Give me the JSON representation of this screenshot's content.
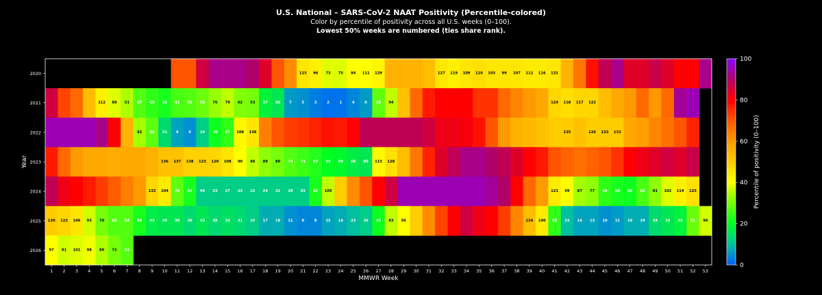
{
  "title": "U.S. National – SARS-CoV-2 NAAT Positivity (Percentile-colored)",
  "subtitle": "Color by percentile of positivity across all U.S. weeks (0–100).",
  "subtitle2": "Lowest 50% weeks are numbered (ties share rank).",
  "chart_data": {
    "type": "heatmap",
    "xlabel": "MMWR Week",
    "ylabel": "Year",
    "colorbar_label": "Percentile of positivity (0–100)",
    "colorbar_ticks": [
      0,
      20,
      40,
      60,
      80,
      100
    ],
    "colorscale": "hsv-like: 0=blue, 20=green, 40=yellow, 60=orange, 80=red, 100=violet",
    "weeks": [
      1,
      2,
      3,
      4,
      5,
      6,
      7,
      8,
      9,
      10,
      11,
      12,
      13,
      14,
      15,
      16,
      17,
      18,
      19,
      20,
      21,
      22,
      23,
      24,
      25,
      26,
      27,
      28,
      29,
      30,
      31,
      32,
      33,
      34,
      35,
      36,
      37,
      38,
      39,
      40,
      41,
      42,
      43,
      44,
      45,
      46,
      47,
      48,
      49,
      50,
      51,
      52,
      53
    ],
    "years": [
      "2020",
      "2021",
      "2022",
      "2023",
      "2024",
      "2025",
      "2026"
    ],
    "rows": [
      {
        "year": "2020",
        "percentile": [
          null,
          null,
          null,
          null,
          null,
          null,
          null,
          null,
          null,
          null,
          70,
          70,
          86,
          92,
          92,
          92,
          90,
          84,
          70,
          62,
          45,
          43,
          38,
          38,
          40,
          40,
          42,
          55,
          55,
          55,
          53,
          45,
          43,
          45,
          46,
          45,
          45,
          45,
          44,
          44,
          45,
          55,
          65,
          78,
          88,
          92,
          84,
          84,
          87,
          84,
          80,
          80,
          92
        ],
        "rank": [
          null,
          null,
          null,
          null,
          null,
          null,
          null,
          null,
          null,
          null,
          null,
          null,
          null,
          null,
          null,
          null,
          null,
          null,
          null,
          null,
          115,
          96,
          73,
          75,
          84,
          111,
          129,
          null,
          null,
          null,
          null,
          127,
          119,
          109,
          110,
          103,
          99,
          107,
          112,
          116,
          131,
          null,
          null,
          null,
          null,
          null,
          null,
          null,
          null,
          null,
          null,
          null,
          null
        ]
      },
      {
        "year": "2021",
        "percentile": [
          86,
          72,
          67,
          53,
          43,
          38,
          35,
          27,
          24,
          22,
          26,
          27,
          29,
          33,
          36,
          31,
          30,
          18,
          16,
          6,
          5,
          3,
          2,
          2,
          4,
          6,
          28,
          36,
          52,
          67,
          77,
          80,
          80,
          80,
          74,
          74,
          67,
          63,
          60,
          57,
          48,
          46,
          48,
          48,
          53,
          57,
          60,
          67,
          60,
          67,
          93,
          95,
          null
        ],
        "rank": [
          null,
          null,
          null,
          null,
          112,
          88,
          51,
          47,
          46,
          34,
          41,
          52,
          69,
          76,
          79,
          62,
          53,
          37,
          20,
          7,
          5,
          3,
          2,
          1,
          4,
          6,
          48,
          94,
          null,
          null,
          null,
          null,
          null,
          null,
          null,
          null,
          null,
          null,
          null,
          null,
          124,
          118,
          117,
          122,
          null,
          null,
          null,
          null,
          null,
          null,
          null,
          null,
          null
        ]
      },
      {
        "year": "2022",
        "percentile": [
          95,
          95,
          95,
          95,
          92,
          80,
          55,
          34,
          28,
          14,
          7,
          5,
          12,
          21,
          24,
          41,
          45,
          64,
          70,
          73,
          74,
          76,
          78,
          77,
          80,
          88,
          88,
          88,
          88,
          88,
          86,
          82,
          82,
          81,
          78,
          70,
          60,
          55,
          54,
          52,
          50,
          50,
          52,
          50,
          50,
          50,
          57,
          59,
          63,
          66,
          70,
          76,
          null
        ],
        "rank": [
          null,
          null,
          null,
          null,
          null,
          null,
          null,
          92,
          46,
          21,
          9,
          6,
          19,
          30,
          67,
          108,
          138,
          null,
          null,
          null,
          null,
          null,
          null,
          null,
          null,
          null,
          null,
          null,
          null,
          null,
          null,
          null,
          null,
          null,
          null,
          null,
          null,
          null,
          null,
          null,
          null,
          135,
          null,
          126,
          133,
          132,
          null,
          null,
          null,
          null,
          null,
          null,
          null
        ]
      },
      {
        "year": "2023",
        "percentile": [
          77,
          67,
          60,
          57,
          57,
          56,
          57,
          57,
          55,
          52,
          52,
          49,
          49,
          48,
          45,
          40,
          36,
          32,
          30,
          27,
          25,
          23,
          20,
          19,
          17,
          16,
          41,
          46,
          53,
          65,
          76,
          84,
          88,
          92,
          92,
          90,
          88,
          84,
          80,
          77,
          70,
          68,
          66,
          68,
          70,
          74,
          80,
          82,
          84,
          86,
          84,
          87,
          null
        ],
        "rank": [
          null,
          null,
          null,
          null,
          null,
          null,
          null,
          null,
          null,
          136,
          137,
          138,
          123,
          120,
          108,
          90,
          86,
          89,
          80,
          74,
          71,
          57,
          52,
          60,
          66,
          85,
          113,
          128,
          null,
          null,
          null,
          null,
          null,
          null,
          null,
          null,
          null,
          null,
          null,
          null,
          null,
          null,
          null,
          null,
          null,
          null,
          null,
          null,
          null,
          null,
          null,
          null,
          null
        ]
      },
      {
        "year": "2024",
        "percentile": [
          88,
          82,
          80,
          77,
          73,
          69,
          64,
          60,
          48,
          44,
          28,
          22,
          12,
          12,
          12,
          12,
          12,
          12,
          12,
          12,
          12,
          22,
          36,
          50,
          62,
          70,
          80,
          86,
          95,
          95,
          95,
          95,
          95,
          95,
          95,
          93,
          90,
          80,
          67,
          60,
          44,
          40,
          34,
          32,
          24,
          22,
          21,
          26,
          32,
          38,
          43,
          46,
          null
        ],
        "rank": [
          null,
          null,
          null,
          null,
          null,
          null,
          null,
          null,
          132,
          104,
          78,
          54,
          44,
          33,
          27,
          23,
          22,
          24,
          22,
          28,
          55,
          82,
          105,
          null,
          null,
          null,
          null,
          null,
          null,
          null,
          null,
          null,
          null,
          null,
          null,
          null,
          null,
          null,
          null,
          null,
          121,
          99,
          87,
          77,
          59,
          50,
          56,
          65,
          81,
          102,
          114,
          125,
          null
        ]
      },
      {
        "year": "2025",
        "percentile": [
          50,
          48,
          45,
          37,
          30,
          27,
          27,
          22,
          17,
          16,
          16,
          14,
          16,
          14,
          15,
          14,
          12,
          8,
          8,
          5,
          4,
          4,
          7,
          8,
          10,
          12,
          21,
          36,
          40,
          50,
          62,
          72,
          80,
          86,
          82,
          80,
          73,
          63,
          53,
          44,
          24,
          10,
          7,
          7,
          5,
          6,
          8,
          8,
          14,
          16,
          18,
          29,
          37
        ],
        "rank": [
          130,
          122,
          106,
          93,
          70,
          68,
          64,
          49,
          43,
          39,
          39,
          36,
          43,
          38,
          32,
          31,
          25,
          17,
          18,
          11,
          8,
          8,
          15,
          14,
          23,
          26,
          46,
          83,
          95,
          null,
          null,
          null,
          null,
          null,
          null,
          null,
          null,
          null,
          134,
          100,
          58,
          23,
          14,
          13,
          10,
          12,
          16,
          19,
          29,
          35,
          42,
          61,
          90
        ]
      },
      {
        "year": "2026",
        "percentile": [
          40,
          37,
          38,
          39,
          35,
          30,
          27,
          null,
          null,
          null,
          null,
          null,
          null,
          null,
          null,
          null,
          null,
          null,
          null,
          null,
          null,
          null,
          null,
          null,
          null,
          null,
          null,
          null,
          null,
          null,
          null,
          null,
          null,
          null,
          null,
          null,
          null,
          null,
          null,
          null,
          null,
          null,
          null,
          null,
          null,
          null,
          null,
          null,
          null,
          null,
          null,
          null,
          null
        ],
        "rank": [
          97,
          91,
          101,
          98,
          89,
          72,
          63,
          null,
          null,
          null,
          null,
          null,
          null,
          null,
          null,
          null,
          null,
          null,
          null,
          null,
          null,
          null,
          null,
          null,
          null,
          null,
          null,
          null,
          null,
          null,
          null,
          null,
          null,
          null,
          null,
          null,
          null,
          null,
          null,
          null,
          null,
          null,
          null,
          null,
          null,
          null,
          null,
          null,
          null,
          null,
          null,
          null,
          null
        ]
      }
    ]
  }
}
